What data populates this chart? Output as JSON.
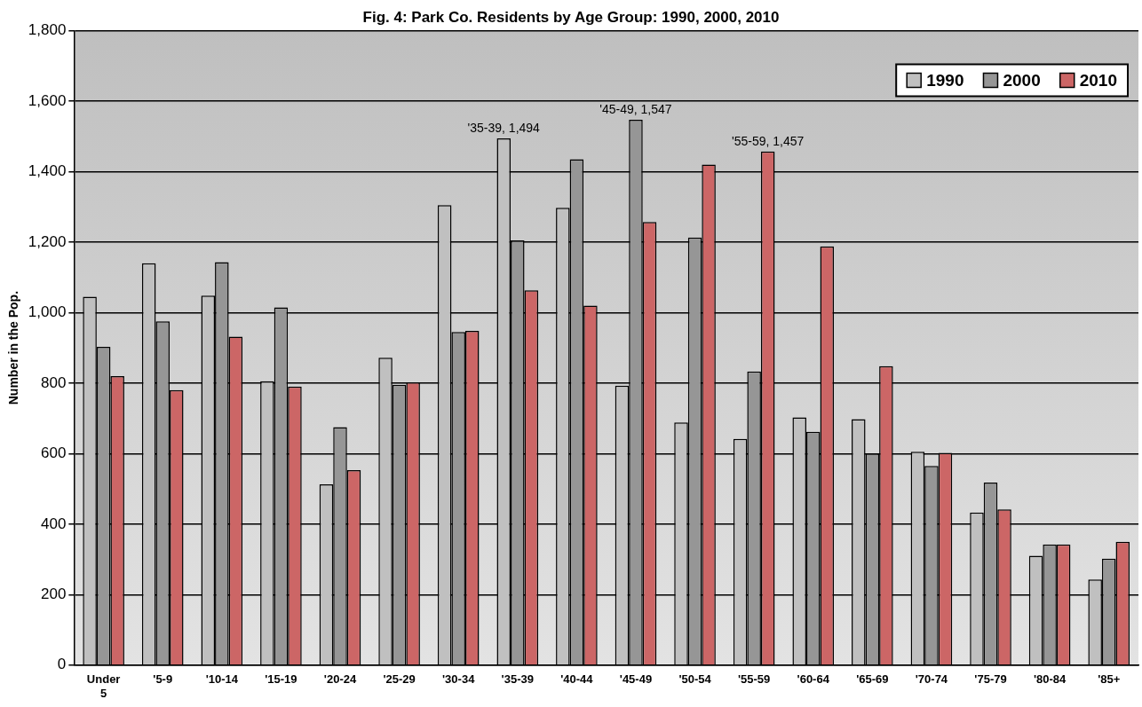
{
  "chart_data": {
    "type": "bar",
    "title": "Fig. 4: Park Co. Residents by Age Group: 1990, 2000, 2010",
    "ylabel": "Number in the Pop.",
    "categories": [
      "Under 5",
      "'5-9",
      "'10-14",
      "'15-19",
      "'20-24",
      "'25-29",
      "'30-34",
      "'35-39",
      "'40-44",
      "'45-49",
      "'50-54",
      "'55-59",
      "'60-64",
      "'65-69",
      "'70-74",
      "'75-79",
      "'80-84",
      "'85+"
    ],
    "series": [
      {
        "name": "1990",
        "color": "#c0c0c0",
        "values": [
          1045,
          1140,
          1048,
          805,
          513,
          872,
          1305,
          1494,
          1297,
          793,
          688,
          642,
          703,
          698,
          605,
          433,
          310,
          243
        ],
        "value_labels": [
          null,
          null,
          null,
          null,
          null,
          null,
          null,
          "'35-39, 1,494",
          null,
          null,
          null,
          null,
          null,
          null,
          null,
          null,
          null,
          null
        ]
      },
      {
        "name": "2000",
        "color": "#969696",
        "values": [
          903,
          975,
          1143,
          1015,
          675,
          795,
          945,
          1205,
          1435,
          1547,
          1213,
          833,
          662,
          600,
          565,
          518,
          342,
          302
        ],
        "value_labels": [
          null,
          null,
          null,
          null,
          null,
          null,
          null,
          null,
          null,
          "'45-49, 1,547",
          null,
          null,
          null,
          null,
          null,
          null,
          null,
          null
        ]
      },
      {
        "name": "2010",
        "color": "#cc6666",
        "values": [
          820,
          780,
          932,
          790,
          553,
          802,
          948,
          1063,
          1020,
          1257,
          1420,
          1457,
          1188,
          848,
          602,
          442,
          342,
          350
        ],
        "value_labels": [
          null,
          null,
          null,
          null,
          null,
          null,
          null,
          null,
          null,
          null,
          null,
          "'55-59, 1,457",
          null,
          null,
          null,
          null,
          null,
          null
        ]
      }
    ],
    "ylim": [
      0,
      1800
    ],
    "yticks": [
      0,
      200,
      400,
      600,
      800,
      {
        "value": 1000,
        "label": "1,000"
      },
      {
        "value": 1200,
        "label": "1,200"
      },
      {
        "value": 1400,
        "label": "1,400"
      },
      {
        "value": 1600,
        "label": "1,600"
      },
      {
        "value": 1800,
        "label": "1,800"
      }
    ],
    "grid": "y",
    "legend": "top right"
  }
}
